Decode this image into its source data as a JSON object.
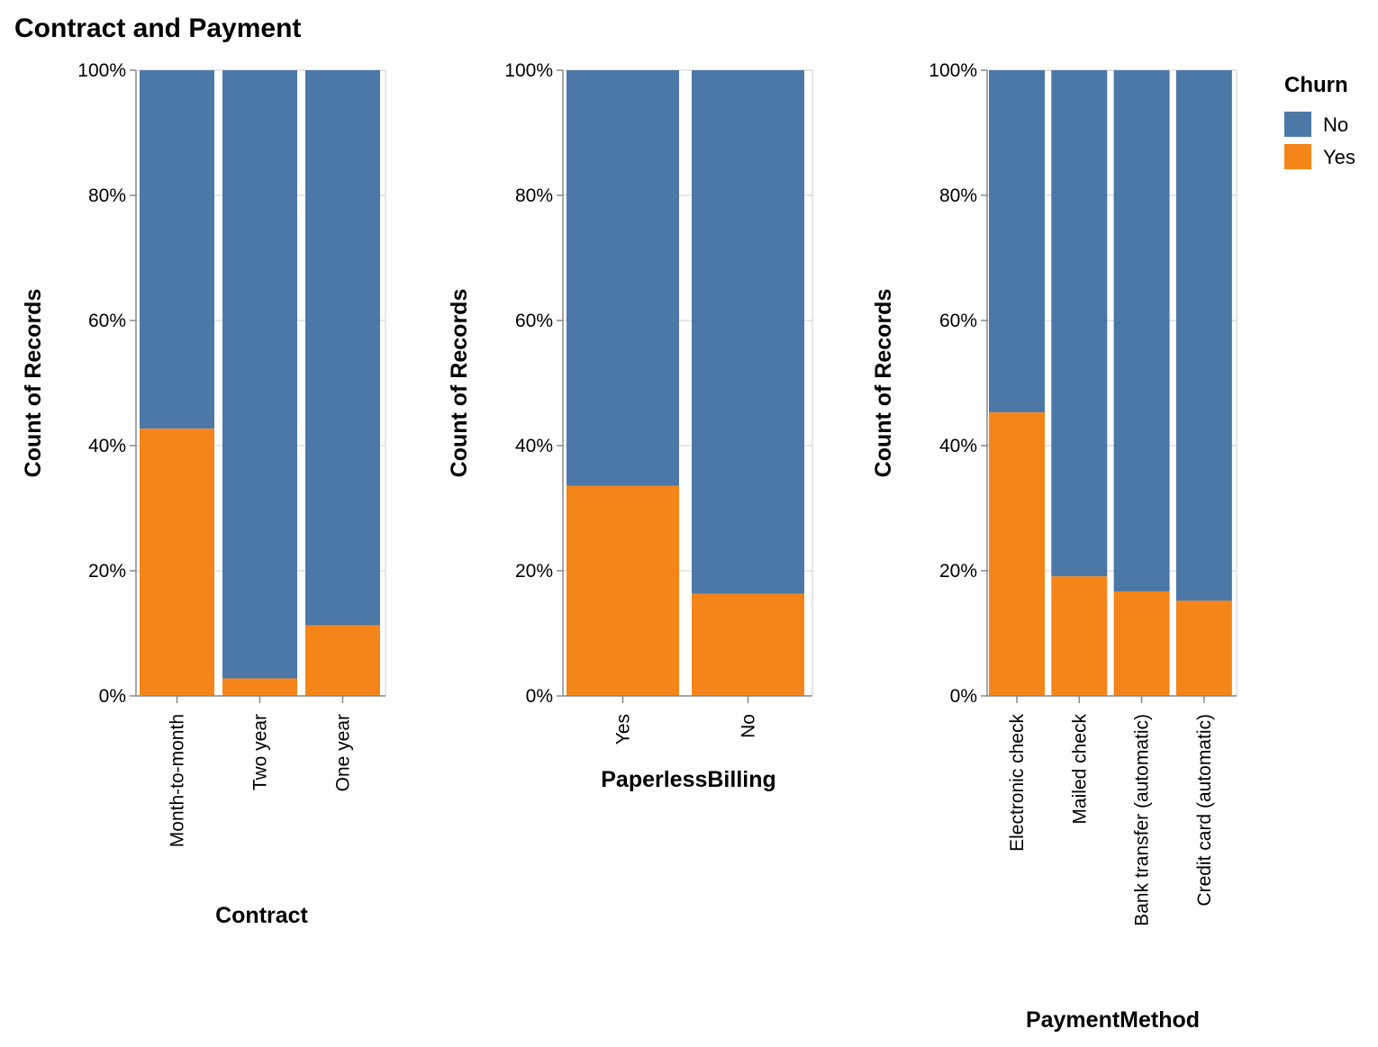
{
  "title": "Contract and Payment",
  "colors": {
    "No": "#4c78a8",
    "Yes": "#f58518",
    "grid": "#dddddd",
    "axis": "#888888"
  },
  "legend": {
    "title": "Churn",
    "placement": "top-right",
    "items": [
      {
        "label": "No",
        "color": "#4c78a8"
      },
      {
        "label": "Yes",
        "color": "#f58518"
      }
    ]
  },
  "chart_data": [
    {
      "type": "bar",
      "stacked": "normalized",
      "xlabel": "Contract",
      "ylabel": "Count of Records",
      "ylim": [
        0,
        100
      ],
      "yticks": [
        "0%",
        "20%",
        "40%",
        "60%",
        "80%",
        "100%"
      ],
      "grid": true,
      "categories": [
        "Month-to-month",
        "Two year",
        "One year"
      ],
      "series": [
        {
          "name": "Yes",
          "values": [
            42.7,
            2.8,
            11.3
          ]
        },
        {
          "name": "No",
          "values": [
            57.3,
            97.2,
            88.7
          ]
        }
      ]
    },
    {
      "type": "bar",
      "stacked": "normalized",
      "xlabel": "PaperlessBilling",
      "ylabel": "Count of Records",
      "ylim": [
        0,
        100
      ],
      "yticks": [
        "0%",
        "20%",
        "40%",
        "60%",
        "80%",
        "100%"
      ],
      "grid": true,
      "categories": [
        "Yes",
        "No"
      ],
      "series": [
        {
          "name": "Yes",
          "values": [
            33.6,
            16.3
          ]
        },
        {
          "name": "No",
          "values": [
            66.4,
            83.7
          ]
        }
      ]
    },
    {
      "type": "bar",
      "stacked": "normalized",
      "xlabel": "PaymentMethod",
      "ylabel": "Count of Records",
      "ylim": [
        0,
        100
      ],
      "yticks": [
        "0%",
        "20%",
        "40%",
        "60%",
        "80%",
        "100%"
      ],
      "grid": true,
      "categories": [
        "Electronic check",
        "Mailed check",
        "Bank transfer (automatic)",
        "Credit card (automatic)"
      ],
      "series": [
        {
          "name": "Yes",
          "values": [
            45.3,
            19.1,
            16.7,
            15.2
          ]
        },
        {
          "name": "No",
          "values": [
            54.7,
            80.9,
            83.3,
            84.8
          ]
        }
      ]
    }
  ]
}
